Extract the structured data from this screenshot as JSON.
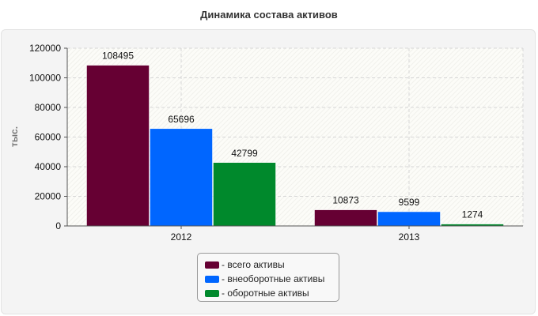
{
  "chart_data": {
    "type": "bar",
    "title": "Динамика состава активов",
    "ylabel": "тыс.",
    "xlabel": "",
    "categories": [
      "2012",
      "2013"
    ],
    "series": [
      {
        "name": "- всего активы",
        "values": [
          108495,
          10873
        ],
        "color": "#660033"
      },
      {
        "name": "- внеоборотные активы",
        "values": [
          65696,
          9599
        ],
        "color": "#0066ff"
      },
      {
        "name": "- оборотные активы",
        "values": [
          42799,
          1274
        ],
        "color": "#00892c"
      }
    ],
    "ylim": [
      0,
      120000
    ],
    "yticks": [
      "0",
      "20000",
      "40000",
      "60000",
      "80000",
      "100000",
      "120000"
    ],
    "grid": true,
    "legend_position": "bottom"
  }
}
